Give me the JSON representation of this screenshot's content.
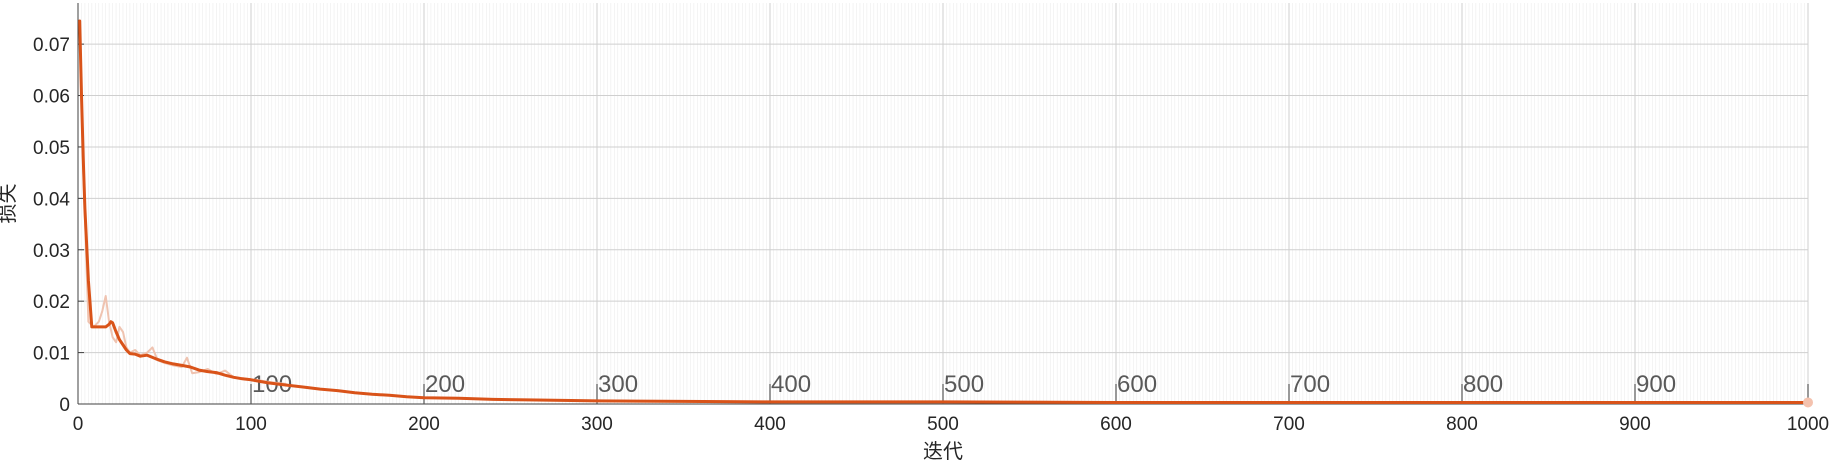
{
  "chart_data": {
    "type": "line",
    "title": "",
    "xlabel": "迭代",
    "ylabel": "损失",
    "xlim": [
      0,
      1000
    ],
    "ylim": [
      0,
      0.078
    ],
    "grid": true,
    "minor_grid": true,
    "x_ticks": [
      0,
      100,
      200,
      300,
      400,
      500,
      600,
      700,
      800,
      900,
      1000
    ],
    "x_tick_labels": [
      "0",
      "100",
      "200",
      "300",
      "400",
      "500",
      "600",
      "700",
      "800",
      "900",
      "1000"
    ],
    "y_ticks": [
      0,
      0.01,
      0.02,
      0.03,
      0.04,
      0.05,
      0.06,
      0.07
    ],
    "y_tick_labels": [
      "0",
      "0.01",
      "0.02",
      "0.03",
      "0.04",
      "0.05",
      "0.06",
      "0.07"
    ],
    "epoch_marks": [
      100,
      200,
      300,
      400,
      500,
      600,
      700,
      800,
      900
    ],
    "epoch_labels": [
      "100",
      "200",
      "300",
      "400",
      "500",
      "600",
      "700",
      "800",
      "900"
    ],
    "series": [
      {
        "role": "raw",
        "color": "#efc3b0",
        "x": [
          1,
          3,
          6,
          9,
          12,
          14,
          16,
          18,
          20,
          22,
          24,
          26,
          28,
          30,
          33,
          36,
          40,
          43,
          46,
          50,
          55,
          60,
          63,
          66,
          70,
          75,
          80,
          85,
          90,
          95,
          100,
          105,
          110,
          115,
          120
        ],
        "y": [
          0.074,
          0.046,
          0.016,
          0.015,
          0.016,
          0.018,
          0.021,
          0.016,
          0.013,
          0.012,
          0.015,
          0.014,
          0.011,
          0.01,
          0.0105,
          0.0095,
          0.01,
          0.011,
          0.0085,
          0.008,
          0.0075,
          0.0072,
          0.009,
          0.006,
          0.0062,
          0.0068,
          0.0058,
          0.0065,
          0.0052,
          0.005,
          0.0048,
          0.0046,
          0.0043,
          0.0041,
          0.0039
        ]
      },
      {
        "role": "smoothed",
        "color": "#d95319",
        "x": [
          1,
          2,
          3,
          4,
          6,
          8,
          10,
          13,
          16,
          18,
          19,
          20,
          22,
          24,
          26,
          28,
          30,
          33,
          36,
          40,
          45,
          50,
          55,
          60,
          65,
          70,
          75,
          80,
          85,
          90,
          95,
          100,
          110,
          120,
          130,
          140,
          150,
          160,
          170,
          180,
          190,
          200,
          220,
          240,
          260,
          280,
          300,
          350,
          400,
          450,
          500,
          600,
          700,
          800,
          900,
          1000
        ],
        "y": [
          0.0745,
          0.06,
          0.048,
          0.038,
          0.024,
          0.015,
          0.015,
          0.015,
          0.015,
          0.0155,
          0.016,
          0.0158,
          0.014,
          0.0125,
          0.0115,
          0.0105,
          0.0098,
          0.0097,
          0.0093,
          0.0095,
          0.0088,
          0.0082,
          0.0078,
          0.0075,
          0.0072,
          0.0066,
          0.0063,
          0.0061,
          0.0056,
          0.0052,
          0.0049,
          0.0047,
          0.0041,
          0.0037,
          0.0033,
          0.0029,
          0.0026,
          0.0022,
          0.0019,
          0.0017,
          0.0014,
          0.0012,
          0.0011,
          0.0009,
          0.0008,
          0.0007,
          0.0006,
          0.0005,
          0.0004,
          0.0004,
          0.0004,
          0.0003,
          0.0003,
          0.0003,
          0.0003,
          0.0003
        ]
      }
    ],
    "final_marker": {
      "x": 1000,
      "y": 0.0003,
      "color": "#f4c2ae"
    }
  }
}
